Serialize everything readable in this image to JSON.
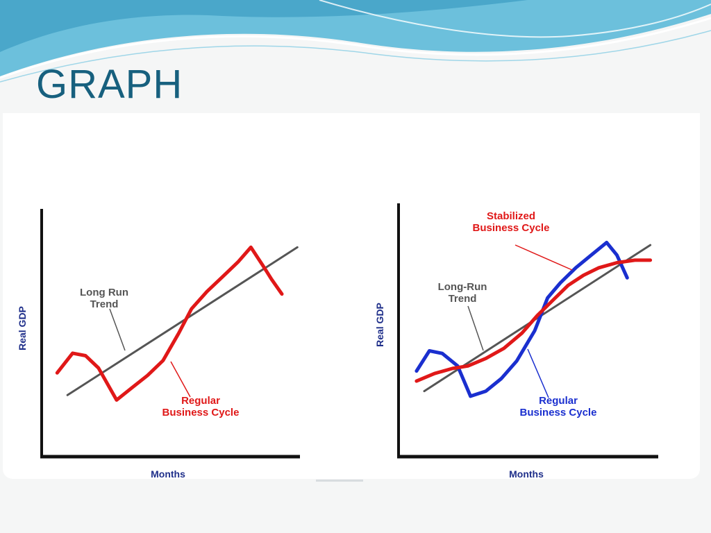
{
  "slide": {
    "title": "GRAPH"
  },
  "colors": {
    "title": "#17607e",
    "wave_dark": "#4aa9c9",
    "wave_light": "#a9dcec",
    "trend": "#555555",
    "regular": "#e01818",
    "regular_label_right": "#1a2fcf",
    "stabilized": "#e01818",
    "axis_label": "#1f2f8a"
  },
  "chart_data": [
    {
      "type": "line",
      "xlabel": "Months",
      "ylabel": "Real GDP",
      "xlim": [
        0,
        100
      ],
      "ylim": [
        0,
        100
      ],
      "grid": false,
      "series": [
        {
          "name": "Long Run Trend",
          "color": "#555555",
          "x": [
            10,
            99
          ],
          "y": [
            25,
            85
          ]
        },
        {
          "name": "Regular Business Cycle",
          "color": "#e01818",
          "x": [
            6,
            12,
            17,
            22,
            29,
            35,
            41,
            47,
            53,
            58,
            64,
            70,
            76,
            81,
            86,
            89,
            93
          ],
          "y": [
            34,
            42,
            41,
            36,
            23,
            28,
            33,
            39,
            50,
            60,
            67,
            73,
            79,
            85,
            77,
            72,
            66
          ]
        }
      ],
      "annotations": [
        {
          "text_lines": [
            "Long Run",
            "Trend"
          ],
          "target": "Long Run Trend"
        },
        {
          "text_lines": [
            "Regular",
            "Business Cycle"
          ],
          "target": "Regular Business Cycle"
        }
      ]
    },
    {
      "type": "line",
      "xlabel": "Months",
      "ylabel": "Real GDP",
      "xlim": [
        0,
        100
      ],
      "ylim": [
        0,
        100
      ],
      "grid": false,
      "series": [
        {
          "name": "Long-Run Trend",
          "color": "#555555",
          "x": [
            10,
            98
          ],
          "y": [
            26,
            84
          ]
        },
        {
          "name": "Regular Business Cycle",
          "color": "#1a2fcf",
          "x": [
            7,
            12,
            17,
            23,
            28,
            34,
            40,
            46,
            53,
            58,
            63,
            69,
            75,
            81,
            85,
            89
          ],
          "y": [
            34,
            42,
            41,
            36,
            24,
            26,
            31,
            38,
            50,
            63,
            69,
            75,
            80,
            85,
            80,
            71
          ]
        },
        {
          "name": "Stabilized Business Cycle",
          "color": "#e01818",
          "x": [
            7,
            14,
            21,
            27,
            34,
            41,
            48,
            54,
            60,
            66,
            72,
            78,
            85,
            92,
            98
          ],
          "y": [
            30,
            33,
            35,
            36,
            39,
            43,
            49,
            56,
            62,
            68,
            72,
            75,
            77,
            78,
            78
          ]
        }
      ],
      "annotations": [
        {
          "text_lines": [
            "Stabilized",
            "Business Cycle"
          ],
          "target": "Stabilized Business Cycle"
        },
        {
          "text_lines": [
            "Long-Run",
            "Trend"
          ],
          "target": "Long-Run Trend"
        },
        {
          "text_lines": [
            "Regular",
            "Business Cycle"
          ],
          "target": "Regular Business Cycle"
        }
      ]
    }
  ]
}
